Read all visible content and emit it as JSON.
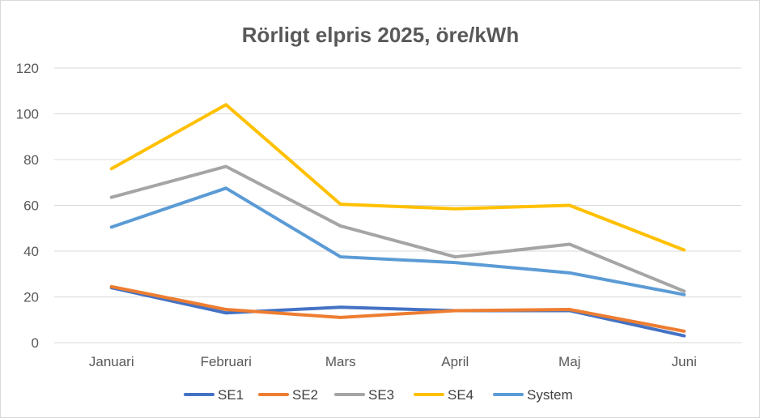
{
  "chart_data": {
    "type": "line",
    "title": "Rörligt elpris 2025, öre/kWh",
    "xlabel": "",
    "ylabel": "",
    "categories": [
      "Januari",
      "Februari",
      "Mars",
      "April",
      "Maj",
      "Juni"
    ],
    "ylim": [
      0,
      120
    ],
    "yticks": [
      0,
      20,
      40,
      60,
      80,
      100,
      120
    ],
    "grid": true,
    "legend_position": "bottom",
    "series": [
      {
        "name": "SE1",
        "color": "#4472C4",
        "values": [
          24,
          13,
          15.5,
          14,
          14,
          3
        ]
      },
      {
        "name": "SE2",
        "color": "#ED7D31",
        "values": [
          24.5,
          14.5,
          11,
          14,
          14.5,
          5
        ]
      },
      {
        "name": "SE3",
        "color": "#A5A5A5",
        "values": [
          63.5,
          77,
          51,
          37.5,
          43,
          22.5
        ]
      },
      {
        "name": "SE4",
        "color": "#FFC000",
        "values": [
          76,
          104,
          60.5,
          58.5,
          60,
          40.5
        ]
      },
      {
        "name": "System",
        "color": "#5B9BD5",
        "values": [
          50.5,
          67.5,
          37.5,
          35,
          30.5,
          21
        ]
      }
    ]
  }
}
